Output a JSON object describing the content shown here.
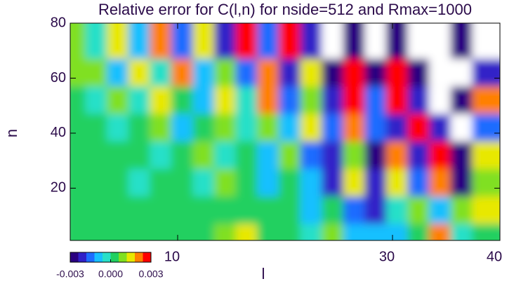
{
  "chart_data": {
    "type": "heatmap",
    "title": "Relative error for C(l,n) for nside=512 and Rmax=1000",
    "x_label": "l",
    "y_label": "n",
    "x": [
      1,
      3,
      5,
      7,
      9,
      11,
      13,
      15,
      17,
      19,
      21,
      23,
      25,
      27,
      29,
      31,
      33,
      35,
      37,
      39
    ],
    "y": [
      5,
      15,
      25,
      35,
      45,
      55,
      65,
      75
    ],
    "z": [
      [
        0.0003,
        0.0004,
        0.0002,
        0.0004,
        0.0003,
        0.0005,
        0.0004,
        0.0006,
        0.0012,
        0.0004,
        0.0002,
        -0.0004,
        0.0008,
        -0.001,
        -0.0012,
        -0.0008,
        0.0004,
        0.0022,
        -0.0006,
        0.0002
      ],
      [
        0.0002,
        0.0001,
        0.0003,
        0.0002,
        0.0,
        0.0003,
        0.0004,
        0.0002,
        0.0003,
        0.0001,
        0.0004,
        -0.0008,
        0.0002,
        -0.0016,
        -0.002,
        -0.0006,
        0.001,
        -0.0012,
        0.0006,
        0.0014
      ],
      [
        0.0001,
        0.0003,
        0.0,
        -0.0002,
        0.0004,
        0.0002,
        -0.0004,
        0.0006,
        0.0002,
        -0.0008,
        0.0004,
        -0.0012,
        -0.002,
        0.0016,
        -0.0024,
        0.0012,
        -0.0018,
        0.002,
        -0.0026,
        0.001
      ],
      [
        0.0002,
        0.0,
        0.0004,
        0.0001,
        -0.0006,
        0.0003,
        0.0008,
        -0.0002,
        0.0004,
        -0.001,
        0.0006,
        -0.0014,
        -0.0022,
        0.0008,
        -0.0026,
        0.0018,
        -0.002,
        0.0026,
        -0.0032,
        0.0012
      ],
      [
        0.0003,
        0.0005,
        -0.0004,
        0.0002,
        0.0006,
        -0.0008,
        0.0004,
        0.001,
        -0.0006,
        0.0008,
        -0.0012,
        0.0014,
        -0.0016,
        0.0022,
        -0.0018,
        -0.0024,
        0.0028,
        -0.002,
        0.0034,
        -0.0016
      ],
      [
        0.0004,
        -0.0002,
        0.0008,
        -0.0006,
        0.0012,
        0.0002,
        -0.001,
        0.0016,
        -0.0004,
        0.002,
        -0.0016,
        0.001,
        -0.0022,
        0.0026,
        -0.0014,
        0.003,
        -0.0024,
        0.0036,
        -0.0028,
        0.0018
      ],
      [
        0.0006,
        0.001,
        -0.0008,
        0.0014,
        -0.0004,
        0.0018,
        -0.0012,
        0.0008,
        -0.0018,
        0.0022,
        -0.002,
        0.0016,
        -0.0026,
        0.0028,
        -0.003,
        0.0024,
        -0.0034,
        0.0032,
        0.0038,
        -0.0022
      ],
      [
        0.0008,
        -0.0006,
        0.0016,
        -0.001,
        0.002,
        -0.0014,
        0.0012,
        -0.002,
        0.0024,
        -0.0016,
        0.0028,
        -0.0022,
        0.0032,
        -0.0026,
        0.0034,
        -0.003,
        0.0036,
        0.004,
        -0.0028,
        0.0042
      ]
    ],
    "xlim": [
      0,
      40
    ],
    "ylim": [
      1,
      80
    ],
    "xticks": [
      10,
      30,
      40
    ],
    "yticks": [
      20,
      40,
      60,
      80
    ],
    "zlim": [
      -0.003,
      0.003
    ],
    "zticks": [
      {
        "value": -0.003,
        "label": "-0.003"
      },
      {
        "value": 0,
        "label": "0.000"
      },
      {
        "value": 0.003,
        "label": "0.003"
      }
    ],
    "colors": [
      "#2a0080",
      "#3020c8",
      "#1e6cff",
      "#18c0ff",
      "#28e0c8",
      "#20d060",
      "#80e020",
      "#e8e800",
      "#ff8000",
      "#ff0000"
    ],
    "above_color": "#ffffff"
  }
}
